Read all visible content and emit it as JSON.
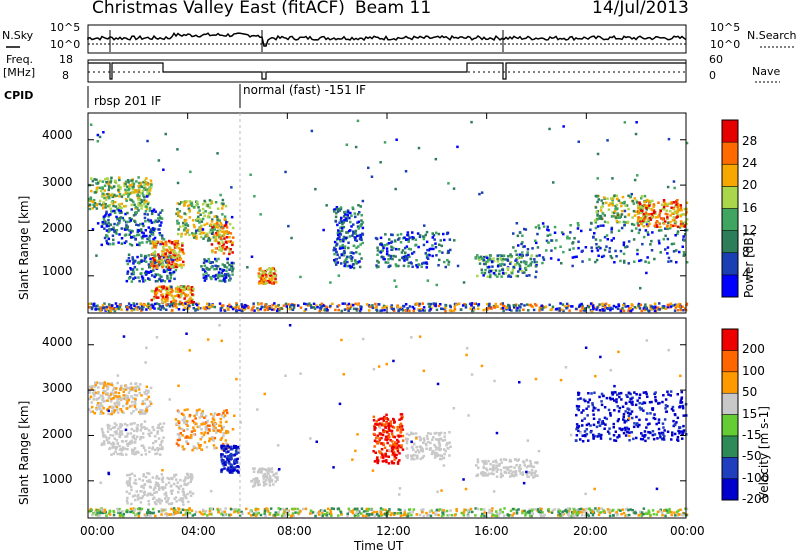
{
  "header": {
    "title": "Christmas Valley East (fitACF)",
    "beam": "Beam 11",
    "date": "14/Jul/2013"
  },
  "top_panels": {
    "nsky_label": "N.Sky",
    "nsearch_label": "N.Search",
    "nsky_axis": [
      "10^5",
      "10^0"
    ],
    "nsky_right_axis": [
      "10^5",
      "10^0"
    ],
    "freq_label": "Freq.",
    "freq_unit": "[MHz]",
    "freq_ticks": [
      "18",
      "8"
    ],
    "nave_label": "Nave",
    "nave_ticks": [
      "60",
      "0"
    ],
    "cpid_label": "CPID",
    "cpid_segments": [
      "rbsp 201 IF",
      "normal (fast) -151 IF"
    ]
  },
  "chart_data": [
    {
      "type": "heatmap",
      "name": "power",
      "ylabel": "Slant Range [km]",
      "yticks": [
        "4000",
        "3000",
        "2000",
        "1000"
      ],
      "ylim": [
        180,
        4590
      ],
      "colorbar_label": "Power [dB]",
      "colorbar_ticks": [
        "28",
        "24",
        "20",
        "16",
        "12",
        "8",
        "4"
      ],
      "colors": [
        "#0000ff",
        "#1a3fb5",
        "#2e7d5a",
        "#3fa560",
        "#a9d64a",
        "#f6a800",
        "#ff6a00",
        "#e60000"
      ],
      "xlim_hours": [
        0,
        24
      ]
    },
    {
      "type": "heatmap",
      "name": "velocity",
      "ylabel": "Slant Range [km]",
      "yticks": [
        "4000",
        "3000",
        "2000",
        "1000"
      ],
      "ylim": [
        180,
        4590
      ],
      "colorbar_label": "Velocity [m s-1]",
      "colorbar_ticks": [
        "200",
        "100",
        "50",
        "15",
        "-15",
        "-50",
        "-100",
        "-200"
      ],
      "colors": [
        "#0000cc",
        "#1f3fbf",
        "#2e8b57",
        "#66cc33",
        "#c8c8c8",
        "#ff9900",
        "#ff6600",
        "#ee0000"
      ],
      "xlim_hours": [
        0,
        24
      ]
    }
  ],
  "xaxis": {
    "ticks": [
      "00:00",
      "04:00",
      "08:00",
      "12:00",
      "16:00",
      "20:00",
      "00:00"
    ],
    "label": "Time UT"
  }
}
